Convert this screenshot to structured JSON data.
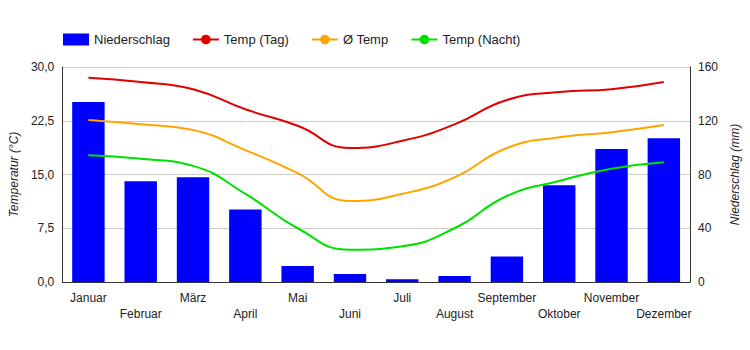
{
  "chart_data": {
    "type": "bar",
    "categories": [
      "Januar",
      "Februar",
      "März",
      "April",
      "Mai",
      "Juni",
      "Juli",
      "August",
      "September",
      "Oktober",
      "November",
      "Dezember"
    ],
    "series": [
      {
        "name": "Niederschlag",
        "type": "bar",
        "axis": "y2",
        "color": "#0000ff",
        "values": [
          134,
          75,
          78,
          54,
          12,
          6,
          2,
          4.5,
          19,
          72,
          99,
          107
        ]
      },
      {
        "name": "Temp (Tag)",
        "type": "line",
        "color": "#e00000",
        "marker": "none",
        "line_style": "smooth",
        "values": [
          28.5,
          27.9,
          26.9,
          24.1,
          21.8,
          18.7,
          19.7,
          22.0,
          25.4,
          26.5,
          26.9,
          27.9
        ]
      },
      {
        "name": "Ø Temp",
        "type": "line",
        "color": "#ffa500",
        "marker": "none",
        "line_style": "smooth",
        "values": [
          22.6,
          22.0,
          21.2,
          18.4,
          15.2,
          11.3,
          12.3,
          14.6,
          18.7,
          20.2,
          20.9,
          21.9
        ]
      },
      {
        "name": "Temp (Nacht)",
        "type": "line",
        "color": "#00e000",
        "marker": "none",
        "line_style": "smooth",
        "values": [
          17.7,
          17.2,
          16.2,
          12.3,
          7.5,
          4.5,
          5.0,
          7.5,
          12.0,
          14.1,
          15.8,
          16.7
        ]
      }
    ],
    "ylabel": "Temperatur (°C)",
    "y2label": "Niederschlag (mm)",
    "ylim": [
      0,
      30
    ],
    "yticks": [
      {
        "value": 0,
        "label": "0,0"
      },
      {
        "value": 7.5,
        "label": "7,5"
      },
      {
        "value": 15,
        "label": "15,0"
      },
      {
        "value": 22.5,
        "label": "22,5"
      },
      {
        "value": 30,
        "label": "30,0"
      }
    ],
    "y2lim": [
      0,
      160
    ],
    "y2ticks": [
      0,
      40,
      80,
      120,
      160
    ],
    "grid": true,
    "legend": "top-left"
  }
}
